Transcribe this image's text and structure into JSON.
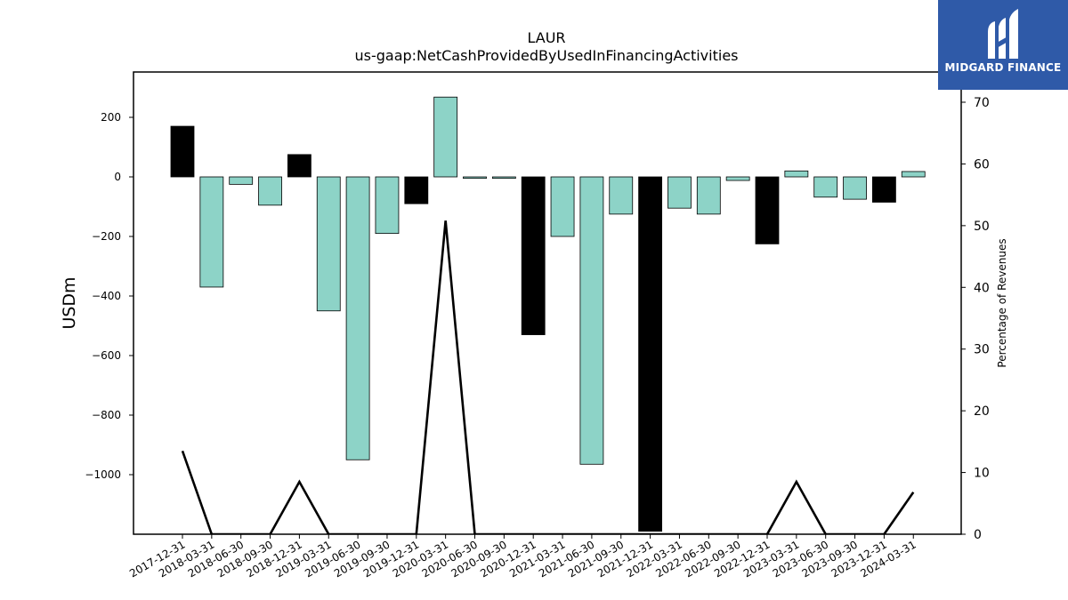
{
  "chart_data": {
    "type": "bar",
    "title": "LAUR",
    "subtitle": "us-gaap:NetCashProvidedByUsedInFinancingActivities",
    "ylabel": "USDm",
    "y2label": "Percentage of Revenues",
    "ylim": [
      -1190,
      350
    ],
    "y2lim": [
      0,
      75
    ],
    "yticks": [
      200,
      0,
      -200,
      -400,
      -600,
      -800,
      -1000
    ],
    "y2ticks": [
      0,
      10,
      20,
      30,
      40,
      50,
      60,
      70
    ],
    "categories": [
      "2017-12-31",
      "2018-03-31",
      "2018-06-30",
      "2018-09-30",
      "2018-12-31",
      "2019-03-31",
      "2019-06-30",
      "2019-09-30",
      "2019-12-31",
      "2020-03-31",
      "2020-06-30",
      "2020-09-30",
      "2020-12-31",
      "2021-03-31",
      "2021-06-30",
      "2021-09-30",
      "2021-12-31",
      "2022-03-31",
      "2022-06-30",
      "2022-09-30",
      "2022-12-31",
      "2023-03-31",
      "2023-06-30",
      "2023-09-30",
      "2023-12-31",
      "2024-03-31"
    ],
    "values": [
      170,
      -370,
      -25,
      -95,
      75,
      -450,
      -950,
      -190,
      -90,
      268,
      -5,
      -5,
      -530,
      -200,
      -965,
      -125,
      -1190,
      -105,
      -125,
      -12,
      -225,
      20,
      -68,
      -75,
      -85,
      18
    ],
    "bar_colors": [
      "#000000",
      "#8dd3c7",
      "#8dd3c7",
      "#8dd3c7",
      "#000000",
      "#8dd3c7",
      "#8dd3c7",
      "#8dd3c7",
      "#000000",
      "#8dd3c7",
      "#8dd3c7",
      "#8dd3c7",
      "#000000",
      "#8dd3c7",
      "#8dd3c7",
      "#8dd3c7",
      "#000000",
      "#8dd3c7",
      "#8dd3c7",
      "#8dd3c7",
      "#000000",
      "#8dd3c7",
      "#8dd3c7",
      "#8dd3c7",
      "#000000",
      "#8dd3c7"
    ],
    "line_series": {
      "name": "Percentage of Revenues",
      "values": [
        13.5,
        0,
        0,
        0,
        8.5,
        0,
        0,
        0,
        0,
        50.8,
        0,
        0,
        0,
        0,
        0,
        0,
        0,
        0,
        0,
        0,
        0,
        8.5,
        0,
        0,
        0,
        6.8
      ],
      "color": "#000000"
    },
    "grid": false
  },
  "logo": {
    "text": "MIDGARD FINANCE",
    "color": "#2f5aa8"
  }
}
